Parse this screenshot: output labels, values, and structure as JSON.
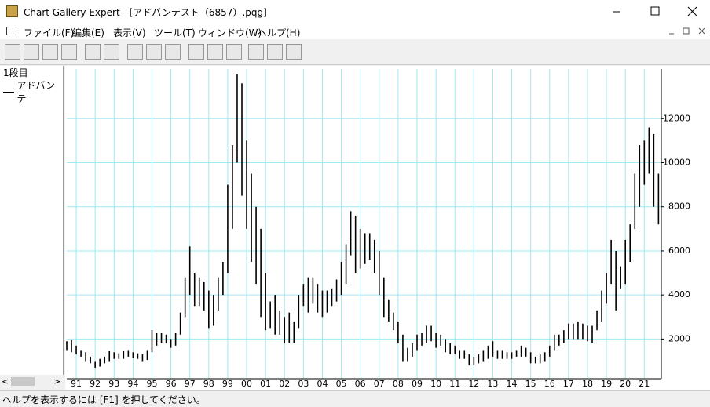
{
  "window_title": "Chart Gallery Expert - [アドバンテスト（6857）.pqg]",
  "menu": [
    "ファイル(F)",
    "編集(E)",
    "表示(V)",
    "ツール(T)",
    "ウィンドウ(W)",
    "ヘルプ(H)"
  ],
  "left_panel": {
    "row_label": "1段目",
    "series_label": "アドバンテ"
  },
  "status": "ヘルプを表示するには [F1] を押してください。",
  "chart_data": {
    "type": "hilo",
    "color": "#000000",
    "grid": true,
    "grid_color": "#9ee9f2",
    "xlim": [
      1991,
      2022.4
    ],
    "ylim": [
      200,
      14250
    ],
    "xticks": [
      {
        "value": 1991.5,
        "label": "91"
      },
      {
        "value": 1992.5,
        "label": "92"
      },
      {
        "value": 1993.5,
        "label": "93"
      },
      {
        "value": 1994.5,
        "label": "94"
      },
      {
        "value": 1995.5,
        "label": "95"
      },
      {
        "value": 1996.5,
        "label": "96"
      },
      {
        "value": 1997.5,
        "label": "97"
      },
      {
        "value": 1998.5,
        "label": "98"
      },
      {
        "value": 1999.5,
        "label": "99"
      },
      {
        "value": 2000.5,
        "label": "00"
      },
      {
        "value": 2001.5,
        "label": "01"
      },
      {
        "value": 2002.5,
        "label": "02"
      },
      {
        "value": 2003.5,
        "label": "03"
      },
      {
        "value": 2004.5,
        "label": "04"
      },
      {
        "value": 2005.5,
        "label": "05"
      },
      {
        "value": 2006.5,
        "label": "06"
      },
      {
        "value": 2007.5,
        "label": "07"
      },
      {
        "value": 2008.5,
        "label": "08"
      },
      {
        "value": 2009.5,
        "label": "09"
      },
      {
        "value": 2010.5,
        "label": "10"
      },
      {
        "value": 2011.5,
        "label": "11"
      },
      {
        "value": 2012.5,
        "label": "12"
      },
      {
        "value": 2013.5,
        "label": "13"
      },
      {
        "value": 2014.5,
        "label": "14"
      },
      {
        "value": 2015.5,
        "label": "15"
      },
      {
        "value": 2016.5,
        "label": "16"
      },
      {
        "value": 2017.5,
        "label": "17"
      },
      {
        "value": 2018.5,
        "label": "18"
      },
      {
        "value": 2019.5,
        "label": "19"
      },
      {
        "value": 2020.5,
        "label": "20"
      },
      {
        "value": 2021.5,
        "label": "21"
      }
    ],
    "yticks": [
      2000,
      4000,
      6000,
      8000,
      10000,
      12000
    ],
    "x": [
      1991,
      1991.25,
      1991.5,
      1991.75,
      1992,
      1992.25,
      1992.5,
      1992.75,
      1993,
      1993.25,
      1993.5,
      1993.75,
      1994,
      1994.25,
      1994.5,
      1994.75,
      1995,
      1995.25,
      1995.5,
      1995.75,
      1996,
      1996.25,
      1996.5,
      1996.75,
      1997,
      1997.25,
      1997.5,
      1997.75,
      1998,
      1998.25,
      1998.5,
      1998.75,
      1999,
      1999.25,
      1999.5,
      1999.75,
      2000,
      2000.25,
      2000.5,
      2000.75,
      2001,
      2001.25,
      2001.5,
      2001.75,
      2002,
      2002.25,
      2002.5,
      2002.75,
      2003,
      2003.25,
      2003.5,
      2003.75,
      2004,
      2004.25,
      2004.5,
      2004.75,
      2005,
      2005.25,
      2005.5,
      2005.75,
      2006,
      2006.25,
      2006.5,
      2006.75,
      2007,
      2007.25,
      2007.5,
      2007.75,
      2008,
      2008.25,
      2008.5,
      2008.75,
      2009,
      2009.25,
      2009.5,
      2009.75,
      2010,
      2010.25,
      2010.5,
      2010.75,
      2011,
      2011.25,
      2011.5,
      2011.75,
      2012,
      2012.25,
      2012.5,
      2012.75,
      2013,
      2013.25,
      2013.5,
      2013.75,
      2014,
      2014.25,
      2014.5,
      2014.75,
      2015,
      2015.25,
      2015.5,
      2015.75,
      2016,
      2016.25,
      2016.5,
      2016.75,
      2017,
      2017.25,
      2017.5,
      2017.75,
      2018,
      2018.25,
      2018.5,
      2018.75,
      2019,
      2019.25,
      2019.5,
      2019.75,
      2020,
      2020.25,
      2020.5,
      2020.75,
      2021,
      2021.25,
      2021.5,
      2021.75,
      2022,
      2022.25
    ],
    "high": [
      1900,
      1950,
      1700,
      1500,
      1400,
      1200,
      1000,
      1100,
      1200,
      1450,
      1400,
      1350,
      1450,
      1500,
      1400,
      1350,
      1300,
      1500,
      2400,
      2300,
      2300,
      2200,
      2000,
      2300,
      3200,
      4800,
      6200,
      5000,
      4800,
      4600,
      4200,
      4000,
      4800,
      5500,
      9000,
      10800,
      14000,
      13600,
      11000,
      9500,
      8000,
      7000,
      5000,
      3700,
      4000,
      3300,
      3000,
      3200,
      2800,
      4000,
      4500,
      4800,
      4800,
      4500,
      4200,
      4200,
      4300,
      4700,
      5500,
      6300,
      7800,
      7600,
      7000,
      6800,
      6800,
      6500,
      6000,
      4800,
      3800,
      3200,
      2800,
      2200,
      1600,
      1800,
      2200,
      2300,
      2600,
      2600,
      2300,
      2200,
      2000,
      1800,
      1700,
      1500,
      1500,
      1300,
      1200,
      1300,
      1500,
      1700,
      1900,
      1500,
      1500,
      1400,
      1400,
      1500,
      1700,
      1600,
      1400,
      1200,
      1300,
      1400,
      1700,
      2200,
      2200,
      2400,
      2700,
      2700,
      2800,
      2700,
      2600,
      2600,
      3300,
      4200,
      5000,
      6500,
      6000,
      5300,
      6500,
      7200,
      9500,
      10800,
      11000,
      11600,
      11300,
      9500
    ],
    "low": [
      1500,
      1400,
      1300,
      1200,
      1000,
      900,
      700,
      750,
      900,
      1000,
      1100,
      1100,
      1100,
      1200,
      1150,
      1100,
      1000,
      1050,
      1400,
      1700,
      1800,
      1800,
      1600,
      1700,
      2200,
      3000,
      4000,
      3500,
      3500,
      3300,
      2500,
      2600,
      3300,
      4000,
      5000,
      7000,
      10000,
      8500,
      7000,
      5500,
      4500,
      3000,
      2400,
      2500,
      2200,
      2200,
      1800,
      1800,
      1800,
      2500,
      3500,
      3200,
      3600,
      3200,
      3000,
      3200,
      3500,
      3700,
      4000,
      4500,
      5800,
      5000,
      5200,
      5400,
      5600,
      5000,
      4000,
      3000,
      2800,
      2400,
      1800,
      1000,
      1000,
      1200,
      1500,
      1700,
      1800,
      1900,
      1600,
      1700,
      1400,
      1300,
      1300,
      1100,
      1100,
      800,
      800,
      900,
      1000,
      1100,
      1200,
      1100,
      1100,
      1100,
      1100,
      1200,
      1200,
      1200,
      900,
      900,
      900,
      1000,
      1200,
      1500,
      1700,
      1800,
      2000,
      2000,
      2000,
      2000,
      1900,
      1800,
      2400,
      2800,
      3600,
      4500,
      3300,
      4300,
      4500,
      5500,
      7000,
      8000,
      9000,
      9500,
      8000,
      7200
    ]
  }
}
